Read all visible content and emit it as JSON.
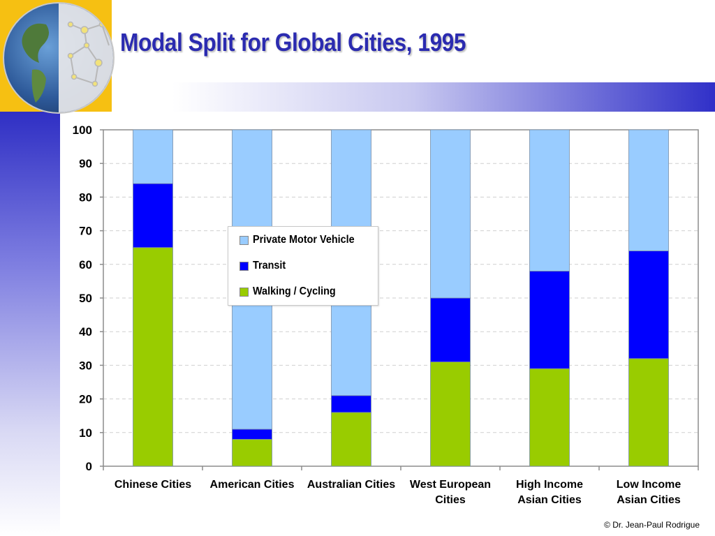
{
  "title": "Modal Split for Global Cities, 1995",
  "credit": "© Dr. Jean-Paul Rodrigue",
  "logo": {
    "icon": "globe-network-icon"
  },
  "colors": {
    "private_motor_vehicle": "#99ccff",
    "transit": "#0000ff",
    "walking_cycling": "#99cc00",
    "title": "#2b2bb0"
  },
  "chart_data": {
    "type": "bar",
    "stacked": true,
    "categories": [
      [
        "Chinese Cities"
      ],
      [
        "American Cities"
      ],
      [
        "Australian Cities"
      ],
      [
        "West European",
        "Cities"
      ],
      [
        "High Income",
        "Asian Cities"
      ],
      [
        "Low Income",
        "Asian Cities"
      ]
    ],
    "series": [
      {
        "name": "Walking / Cycling",
        "color": "#99cc00",
        "values": [
          65,
          8,
          16,
          31,
          29,
          32
        ]
      },
      {
        "name": "Transit",
        "color": "#0000ff",
        "values": [
          19,
          3,
          5,
          19,
          29,
          32
        ]
      },
      {
        "name": "Private Motor Vehicle",
        "color": "#99ccff",
        "values": [
          16,
          89,
          79,
          50,
          42,
          36
        ]
      }
    ],
    "legend_order": [
      "Private Motor Vehicle",
      "Transit",
      "Walking / Cycling"
    ],
    "ylim": [
      0,
      100
    ],
    "yticks": [
      0,
      10,
      20,
      30,
      40,
      50,
      60,
      70,
      80,
      90,
      100
    ],
    "grid": true,
    "legend_position": "center-left",
    "xlabel": "",
    "ylabel": ""
  }
}
